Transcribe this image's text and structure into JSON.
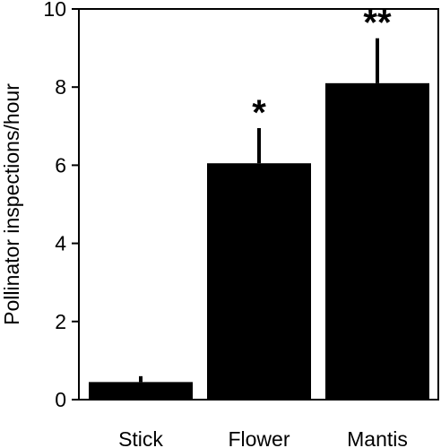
{
  "chart_data": {
    "type": "bar",
    "title": "",
    "xlabel": "",
    "ylabel": "Pollinator inspections/hour",
    "categories": [
      "Stick",
      "Flower",
      "Mantis"
    ],
    "values": [
      0.45,
      6.05,
      8.1
    ],
    "error_upper": [
      0.15,
      0.9,
      1.15
    ],
    "significance": [
      "",
      "*",
      "**"
    ],
    "ylim": [
      0,
      10
    ],
    "yticks": [
      "0",
      "2",
      "4",
      "6",
      "8",
      "10"
    ],
    "grid": false,
    "legend": "none",
    "bar_color": "#000000"
  }
}
